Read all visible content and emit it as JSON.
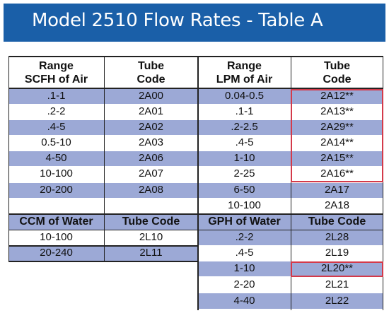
{
  "banner": {
    "title": "Model 2510 Flow Rates - Table A"
  },
  "header_air": {
    "col1": [
      "Range",
      "SCFH of Air"
    ],
    "col2": [
      "Tube",
      "Code"
    ],
    "col3": [
      "Range",
      "LPM of Air"
    ],
    "col4": [
      "Tube",
      "Code"
    ]
  },
  "air_rows": [
    {
      "scfh": ".1-1",
      "code1": "2A00",
      "lpm": "0.04-0.5",
      "code2": "2A12**"
    },
    {
      "scfh": ".2-2",
      "code1": "2A01",
      "lpm": ".1-1",
      "code2": "2A13**"
    },
    {
      "scfh": ".4-5",
      "code1": "2A02",
      "lpm": ".2-2.5",
      "code2": "2A29**"
    },
    {
      "scfh": "0.5-10",
      "code1": "2A03",
      "lpm": ".4-5",
      "code2": "2A14**"
    },
    {
      "scfh": "4-50",
      "code1": "2A06",
      "lpm": "1-10",
      "code2": "2A15**"
    },
    {
      "scfh": "10-100",
      "code1": "2A07",
      "lpm": "2-25",
      "code2": "2A16**"
    },
    {
      "scfh": "20-200",
      "code1": "2A08",
      "lpm": "6-50",
      "code2": "2A17"
    },
    {
      "scfh": "",
      "code1": "",
      "lpm": "10-100",
      "code2": "2A18"
    }
  ],
  "header_water": {
    "col1": "CCM of Water",
    "col2": "Tube Code",
    "col3": "GPH of Water",
    "col4": "Tube Code"
  },
  "water_rows": [
    {
      "ccm": "10-100",
      "code1": "2L10",
      "gph": ".2-2",
      "code2": "2L28"
    },
    {
      "ccm": "20-240",
      "code1": "2L11",
      "gph": ".4-5",
      "code2": "2L19"
    },
    {
      "ccm": "",
      "code1": "",
      "gph": "1-10",
      "code2": "2L20**"
    },
    {
      "ccm": "",
      "code1": "",
      "gph": "2-20",
      "code2": "2L21"
    },
    {
      "ccm": "",
      "code1": "",
      "gph": "4-40",
      "code2": "2L22"
    }
  ],
  "colors": {
    "banner": "#1a5fa8",
    "shade": "#9ca9d6",
    "highlight": "#d43a4a"
  }
}
